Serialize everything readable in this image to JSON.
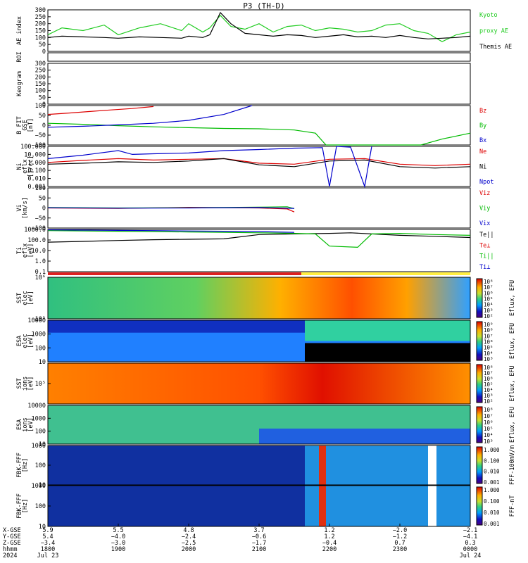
{
  "title": "P3 (TH-D)",
  "panels": [
    {
      "id": "ae",
      "ylabel": [
        "AE index"
      ],
      "ticks": [
        "300",
        "250",
        "200",
        "150",
        "100",
        "50",
        "0"
      ],
      "legend": [
        {
          "text": "Kyoto",
          "color": "#22cc22"
        },
        {
          "text": "proxy AE",
          "color": "#22cc22"
        },
        {
          "text": "Themis AE",
          "color": "#000000"
        }
      ]
    },
    {
      "id": "roi",
      "ylabel": [
        "ROI"
      ],
      "ticks": [],
      "legend": []
    },
    {
      "id": "keogram",
      "ylabel": [
        "Keogram"
      ],
      "ticks": [
        "300",
        "250",
        "200",
        "150",
        "100",
        "50",
        "0"
      ],
      "legend": []
    },
    {
      "id": "bfgm",
      "ylabel": [
        "B FIT",
        "GSE",
        "[nT]"
      ],
      "ticks": [
        "100",
        "50",
        "0",
        "−50",
        "−100"
      ],
      "legend": [
        {
          "text": "Bz",
          "color": "#dd0000"
        },
        {
          "text": "By",
          "color": "#00bb00"
        },
        {
          "text": "Bx",
          "color": "#0000cc"
        }
      ]
    },
    {
      "id": "ni",
      "ylabel": [
        "Ni",
        "eflx",
        "[1/cc]"
      ],
      "ticks": [
        "100.000",
        "10.000",
        "1.000",
        "0.100",
        "0.010",
        "0.001"
      ],
      "legend": [
        {
          "text": "Ne",
          "color": "#dd0000"
        },
        {
          "text": "Ni",
          "color": "#000000"
        },
        {
          "text": "Npot",
          "color": "#0000cc"
        }
      ]
    },
    {
      "id": "vi",
      "ylabel": [
        "Vi",
        "[km/s]"
      ],
      "ticks": [
        "100",
        "50",
        "0",
        "−50",
        "−100"
      ],
      "legend": [
        {
          "text": "Viz",
          "color": "#dd0000"
        },
        {
          "text": "Viy",
          "color": "#00bb00"
        },
        {
          "text": "Vix",
          "color": "#0000cc"
        }
      ]
    },
    {
      "id": "ti",
      "ylabel": [
        "Ti",
        "eflx",
        "[eV]"
      ],
      "ticks": [
        "1000.0",
        "100.0",
        "10.0",
        "1.0",
        "0.1"
      ],
      "legend": [
        {
          "text": "Te||",
          "color": "#000000"
        },
        {
          "text": "Te⊥",
          "color": "#dd0000"
        },
        {
          "text": "Ti||",
          "color": "#00bb00"
        },
        {
          "text": "Ti⊥",
          "color": "#0000cc"
        }
      ]
    },
    {
      "id": "sst_e",
      "ylabel": [
        "SST",
        "elec",
        "[eV]"
      ],
      "ticks": [
        "10⁶",
        "10⁵"
      ],
      "cbar_label": "Eflux, EFU",
      "cbar_ticks": [
        "10⁸",
        "10⁷",
        "10⁶",
        "10⁵",
        "10⁴",
        "10³",
        "10²"
      ]
    },
    {
      "id": "esa_e",
      "ylabel": [
        "ESA",
        "elec",
        "[eV]"
      ],
      "ticks": [
        "10000",
        "1000",
        "100",
        "10"
      ],
      "cbar_label": "Eflux, EFU",
      "cbar_ticks": [
        "10⁹",
        "10⁸",
        "10⁷",
        "10⁶",
        "10⁵",
        "10⁴",
        "10³"
      ]
    },
    {
      "id": "sst_i",
      "ylabel": [
        "SST",
        "ions",
        "[eV]"
      ],
      "ticks": [
        "10⁵"
      ],
      "cbar_label": "Eflux, EFU",
      "cbar_ticks": [
        "10⁸",
        "10⁷",
        "10⁶",
        "10⁵",
        "10⁴",
        "10³",
        "10²"
      ]
    },
    {
      "id": "esa_i",
      "ylabel": [
        "ESA",
        "ions",
        "[eV]"
      ],
      "ticks": [
        "10000",
        "1000",
        "100",
        "10"
      ],
      "cbar_label": "Eflux, EFU",
      "cbar_ticks": [
        "10⁸",
        "10⁷",
        "10⁶",
        "10⁵",
        "10⁴",
        "10³"
      ]
    },
    {
      "id": "fbk_e",
      "ylabel": [
        "FBK-FFF",
        "[Hz]"
      ],
      "ticks": [
        "1000",
        "100",
        "10"
      ],
      "cbar_label": "FFF-100mV/m",
      "cbar_ticks": [
        "1.000",
        "0.100",
        "0.010",
        "0.001"
      ]
    },
    {
      "id": "fbk_b",
      "ylabel": [
        "FBK-FFF",
        "[Hz]"
      ],
      "ticks": [
        "1000",
        "100",
        "10"
      ],
      "cbar_label": "FFF-nT",
      "cbar_ticks": [
        "1.000",
        "0.100",
        "0.010",
        "0.001"
      ]
    }
  ],
  "xaxis": {
    "row_labels": [
      "X-GSE",
      "Y-GSE",
      "Z-GSE",
      "hhmm",
      "2024"
    ],
    "columns": [
      [
        "5.9",
        "5.4",
        "−3.4",
        "1800",
        "Jul 23"
      ],
      [
        "5.5",
        "−4.0",
        "−3.0",
        "1900",
        ""
      ],
      [
        "4.8",
        "−2.4",
        "−2.5",
        "2000",
        ""
      ],
      [
        "3.7",
        "−0.6",
        "−1.7",
        "2100",
        ""
      ],
      [
        "1.2",
        "1.2",
        "−0.4",
        "2200",
        ""
      ],
      [
        "−2.0",
        "−1.2",
        "0.7",
        "2300",
        ""
      ],
      [
        "−2.1",
        "−4.1",
        "0.3",
        "0000",
        "Jul 24"
      ]
    ]
  },
  "chart_data": {
    "type": "line",
    "title": "P3 (TH-D)",
    "x_range": [
      "2024-07-23 18:00",
      "2024-07-24 00:00"
    ],
    "x_ticks": [
      "1800",
      "1900",
      "2000",
      "2100",
      "2200",
      "2300",
      "0000"
    ],
    "panels": [
      {
        "name": "AE index",
        "ylim": [
          0,
          300
        ],
        "series": [
          {
            "name": "Kyoto proxy AE",
            "color": "#22cc22",
            "x": [
              18.0,
              18.2,
              18.5,
              18.8,
              19.0,
              19.3,
              19.6,
              19.9,
              20.0,
              20.2,
              20.3,
              20.45,
              20.6,
              20.8,
              21.0,
              21.2,
              21.4,
              21.6,
              21.8,
              22.0,
              22.2,
              22.4,
              22.6,
              22.8,
              23.0,
              23.2,
              23.4,
              23.6,
              23.8,
              24.0
            ],
            "values": [
              120,
              170,
              150,
              190,
              120,
              170,
              200,
              150,
              200,
              140,
              170,
              260,
              180,
              160,
              200,
              140,
              180,
              190,
              150,
              170,
              160,
              140,
              150,
              190,
              200,
              150,
              130,
              70,
              120,
              140
            ]
          },
          {
            "name": "Themis AE",
            "color": "#000000",
            "x": [
              18.0,
              18.2,
              18.5,
              18.8,
              19.0,
              19.3,
              19.6,
              19.9,
              20.0,
              20.2,
              20.3,
              20.45,
              20.6,
              20.8,
              21.0,
              21.2,
              21.4,
              21.6,
              21.8,
              22.0,
              22.2,
              22.4,
              22.6,
              22.8,
              23.0,
              23.2,
              23.4,
              23.6,
              23.8,
              24.0
            ],
            "values": [
              100,
              110,
              105,
              100,
              95,
              105,
              100,
              95,
              110,
              100,
              120,
              280,
              200,
              130,
              120,
              110,
              120,
              115,
              100,
              110,
              120,
              105,
              110,
              100,
              115,
              100,
              90,
              95,
              100,
              110
            ]
          }
        ]
      },
      {
        "name": "B FIT GSE",
        "ylim": [
          -100,
          100
        ],
        "series": [
          {
            "name": "Bz",
            "color": "#dd0000",
            "x": [
              18.0,
              18.3,
              18.6,
              18.9,
              19.2,
              19.5
            ],
            "values": [
              55,
              62,
              70,
              78,
              85,
              95
            ]
          },
          {
            "name": "By",
            "color": "#00bb00",
            "x": [
              18.0,
              18.5,
              19.0,
              19.5,
              20.0,
              20.5,
              21.0,
              21.5,
              21.8,
              21.95,
              23.3,
              23.6,
              24.0
            ],
            "values": [
              10,
              5,
              -2,
              -8,
              -12,
              -16,
              -18,
              -24,
              -40,
              -100,
              -100,
              -70,
              -40
            ]
          },
          {
            "name": "Bx",
            "color": "#0000cc",
            "x": [
              18.0,
              18.5,
              19.0,
              19.5,
              20.0,
              20.5,
              20.9
            ],
            "values": [
              -10,
              -5,
              2,
              10,
              25,
              55,
              100
            ]
          }
        ]
      },
      {
        "name": "Ni",
        "ylim": [
          0.001,
          100
        ],
        "log": true,
        "series": [
          {
            "name": "Ne",
            "color": "#dd0000",
            "x": [
              18.0,
              18.5,
              19.0,
              19.5,
              20.0,
              20.5,
              21.0,
              21.5,
              22.0,
              22.5,
              23.0,
              23.5,
              24.0
            ],
            "values": [
              1.0,
              1.8,
              3.0,
              2.0,
              2.5,
              3.0,
              0.8,
              0.6,
              2.5,
              3.0,
              0.6,
              0.4,
              0.6
            ]
          },
          {
            "name": "Ni",
            "color": "#000000",
            "x": [
              18.0,
              18.5,
              19.0,
              19.5,
              20.0,
              20.5,
              21.0,
              21.5,
              22.0,
              22.5,
              23.0,
              23.5,
              24.0
            ],
            "values": [
              0.6,
              0.8,
              1.2,
              1.0,
              1.5,
              3.0,
              0.5,
              0.3,
              1.5,
              2.0,
              0.3,
              0.2,
              0.3
            ]
          },
          {
            "name": "Npot",
            "color": "#0000cc",
            "x": [
              18.0,
              18.5,
              19.0,
              19.2,
              19.5,
              20.0,
              20.5,
              21.0,
              21.5,
              21.9,
              22.0,
              22.1,
              22.3,
              22.5,
              22.6
            ],
            "values": [
              3,
              8,
              30,
              10,
              12,
              15,
              30,
              40,
              60,
              70,
              0.001,
              100,
              80,
              0.001,
              100
            ]
          }
        ]
      },
      {
        "name": "Vi",
        "ylim": [
          -100,
          100
        ],
        "series": [
          {
            "name": "Viz",
            "color": "#dd0000",
            "x": [
              18.0,
              19.0,
              20.0,
              21.0,
              21.4,
              21.5
            ],
            "values": [
              0,
              -2,
              3,
              0,
              -5,
              -20
            ]
          },
          {
            "name": "Viy",
            "color": "#00bb00",
            "x": [
              18.0,
              19.0,
              20.0,
              21.0,
              21.4,
              21.5
            ],
            "values": [
              2,
              0,
              1,
              4,
              6,
              -3
            ]
          },
          {
            "name": "Vix",
            "color": "#0000cc",
            "x": [
              18.0,
              19.0,
              20.0,
              21.0,
              21.5
            ],
            "values": [
              1,
              -1,
              0,
              2,
              -2
            ]
          }
        ]
      },
      {
        "name": "Ti",
        "ylim": [
          0.1,
          2000
        ],
        "log": true,
        "series": [
          {
            "name": "Te||",
            "color": "#000000",
            "x": [
              18.0,
              18.5,
              19.0,
              19.5,
              20.0,
              20.5,
              21.0,
              21.5,
              22.0,
              22.3,
              22.6,
              23.0,
              23.5,
              24.0
            ],
            "values": [
              100,
              120,
              150,
              180,
              200,
              220,
              600,
              700,
              800,
              900,
              700,
              500,
              400,
              300
            ]
          },
          {
            "name": "Ti||",
            "color": "#00bb00",
            "x": [
              18.0,
              18.5,
              19.0,
              19.5,
              20.0,
              20.5,
              21.0,
              21.5,
              21.8,
              22.0,
              22.4,
              22.6,
              23.0,
              23.5,
              24.0
            ],
            "values": [
              1500,
              1400,
              1300,
              1200,
              1100,
              1000,
              900,
              800,
              700,
              40,
              30,
              700,
              800,
              600,
              500
            ]
          },
          {
            "name": "Ti⊥",
            "color": "#0000cc",
            "x": [
              18.0,
              18.5,
              19.0,
              19.5,
              20.0,
              20.5,
              21.0,
              21.5
            ],
            "values": [
              1800,
              1700,
              1600,
              1500,
              1400,
              1300,
              1200,
              1000
            ]
          }
        ]
      }
    ]
  },
  "colors": {
    "accent_green": "#22cc22",
    "accent_red": "#dd0000",
    "accent_blue": "#0000cc"
  }
}
